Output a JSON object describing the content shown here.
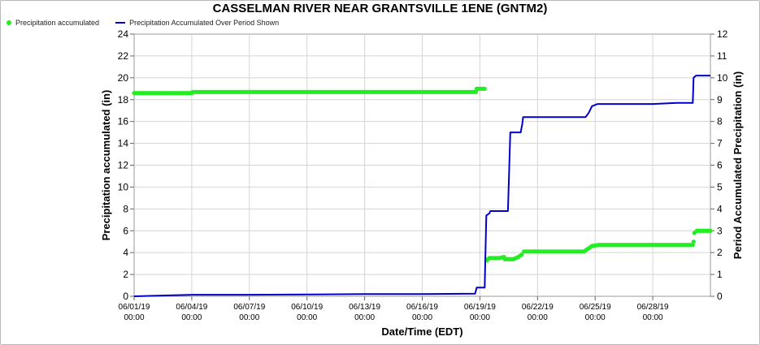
{
  "chart_data": {
    "type": "line",
    "title": "CASSELMAN RIVER NEAR GRANTSVILLE 1ENE (GNTM2)",
    "xlabel": "Date/Time (EDT)",
    "ylabel": "Precipitation accumulated (in)",
    "y2label": "Period Accumulated Precipitation (in)",
    "x_range": [
      "2019-06-01 00:00",
      "2019-07-01 00:00"
    ],
    "ylim": [
      0,
      24
    ],
    "y2lim": [
      0,
      12
    ],
    "yticks": [
      "0",
      "2",
      "4",
      "6",
      "8",
      "10",
      "12",
      "14",
      "16",
      "18",
      "20",
      "22",
      "24"
    ],
    "y2ticks": [
      "0",
      "1",
      "2",
      "3",
      "4",
      "5",
      "6",
      "7",
      "8",
      "9",
      "10",
      "11",
      "12"
    ],
    "xticks": [
      {
        "date": "06/01/19",
        "time": "00:00"
      },
      {
        "date": "06/04/19",
        "time": "00:00"
      },
      {
        "date": "06/07/19",
        "time": "00:00"
      },
      {
        "date": "06/10/19",
        "time": "00:00"
      },
      {
        "date": "06/13/19",
        "time": "00:00"
      },
      {
        "date": "06/16/19",
        "time": "00:00"
      },
      {
        "date": "06/19/19",
        "time": "00:00"
      },
      {
        "date": "06/22/19",
        "time": "00:00"
      },
      {
        "date": "06/25/19",
        "time": "00:00"
      },
      {
        "date": "06/28/19",
        "time": "00:00"
      }
    ],
    "grid": true,
    "legend_position": "top-left",
    "series": [
      {
        "name": "Precipitation accumulated",
        "axis": "left",
        "color": "#22ee22",
        "style": "points",
        "points": [
          [
            "2019-06-01 00:00",
            18.6
          ],
          [
            "2019-06-04 00:00",
            18.6
          ],
          [
            "2019-06-04 01:00",
            18.7
          ],
          [
            "2019-06-07 00:00",
            18.7
          ],
          [
            "2019-06-10 00:00",
            18.7
          ],
          [
            "2019-06-13 00:00",
            18.7
          ],
          [
            "2019-06-16 00:00",
            18.7
          ],
          [
            "2019-06-18 19:00",
            18.7
          ],
          [
            "2019-06-18 20:00",
            19.0
          ],
          [
            "2019-06-19 06:00",
            19.0
          ],
          [
            "2019-06-19 09:00",
            3.3
          ],
          [
            "2019-06-19 10:00",
            3.4
          ],
          [
            "2019-06-19 12:00",
            3.5
          ],
          [
            "2019-06-20 00:00",
            3.5
          ],
          [
            "2019-06-20 06:00",
            3.6
          ],
          [
            "2019-06-20 07:00",
            3.4
          ],
          [
            "2019-06-20 18:00",
            3.4
          ],
          [
            "2019-06-21 00:00",
            3.6
          ],
          [
            "2019-06-21 04:00",
            3.8
          ],
          [
            "2019-06-21 07:00",
            4.1
          ],
          [
            "2019-06-22 00:00",
            4.1
          ],
          [
            "2019-06-24 10:00",
            4.1
          ],
          [
            "2019-06-24 14:00",
            4.3
          ],
          [
            "2019-06-24 20:00",
            4.6
          ],
          [
            "2019-06-25 04:00",
            4.7
          ],
          [
            "2019-06-28 00:00",
            4.7
          ],
          [
            "2019-06-30 02:00",
            4.7
          ],
          [
            "2019-06-30 03:00",
            5.0
          ],
          [
            "2019-06-30 04:00",
            5.8
          ],
          [
            "2019-06-30 07:00",
            6.0
          ],
          [
            "2019-07-01 00:00",
            6.0
          ]
        ]
      },
      {
        "name": "Precipitation Accumulated Over Period Shown",
        "axis": "right",
        "color": "#0000cc",
        "style": "line",
        "points": [
          [
            "2019-06-01 00:00",
            0.0
          ],
          [
            "2019-06-03 00:00",
            0.05
          ],
          [
            "2019-06-04 01:00",
            0.07
          ],
          [
            "2019-06-07 00:00",
            0.07
          ],
          [
            "2019-06-10 00:00",
            0.08
          ],
          [
            "2019-06-13 00:00",
            0.1
          ],
          [
            "2019-06-16 00:00",
            0.1
          ],
          [
            "2019-06-18 18:00",
            0.12
          ],
          [
            "2019-06-18 20:00",
            0.4
          ],
          [
            "2019-06-19 06:00",
            0.4
          ],
          [
            "2019-06-19 08:00",
            3.7
          ],
          [
            "2019-06-19 12:00",
            3.8
          ],
          [
            "2019-06-19 13:00",
            3.9
          ],
          [
            "2019-06-20 11:00",
            3.9
          ],
          [
            "2019-06-20 14:00",
            7.5
          ],
          [
            "2019-06-21 03:00",
            7.5
          ],
          [
            "2019-06-21 05:00",
            7.9
          ],
          [
            "2019-06-21 06:00",
            8.2
          ],
          [
            "2019-06-24 12:00",
            8.2
          ],
          [
            "2019-06-24 16:00",
            8.4
          ],
          [
            "2019-06-24 20:00",
            8.7
          ],
          [
            "2019-06-25 03:00",
            8.8
          ],
          [
            "2019-06-28 00:00",
            8.8
          ],
          [
            "2019-06-29 06:00",
            8.85
          ],
          [
            "2019-06-30 02:00",
            8.85
          ],
          [
            "2019-06-30 03:00",
            10.0
          ],
          [
            "2019-06-30 06:00",
            10.1
          ],
          [
            "2019-07-01 00:00",
            10.1
          ]
        ]
      }
    ]
  }
}
